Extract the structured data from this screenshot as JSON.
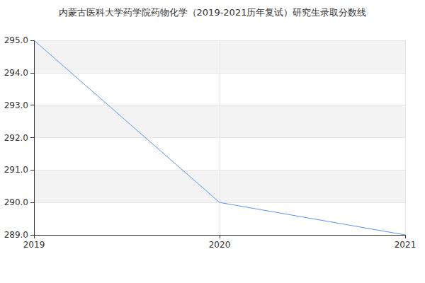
{
  "chart_data": {
    "type": "line",
    "title": "内蒙古医科大学药学院药物化学（2019-2021历年复试）研究生录取分数线",
    "categories": [
      "2019",
      "2020",
      "2021"
    ],
    "values": [
      295,
      290,
      289
    ],
    "color": "#5b8ff9",
    "marker": "none",
    "ylim": [
      289,
      295
    ],
    "yticks": [
      {
        "value": 289,
        "label": "289.0"
      },
      {
        "value": 290,
        "label": "290.0"
      },
      {
        "value": 291,
        "label": "291.0"
      },
      {
        "value": 292,
        "label": "292.0"
      },
      {
        "value": 293,
        "label": "293.0"
      },
      {
        "value": 294,
        "label": "294.0"
      },
      {
        "value": 295,
        "label": "295.0"
      }
    ],
    "grid": true
  }
}
